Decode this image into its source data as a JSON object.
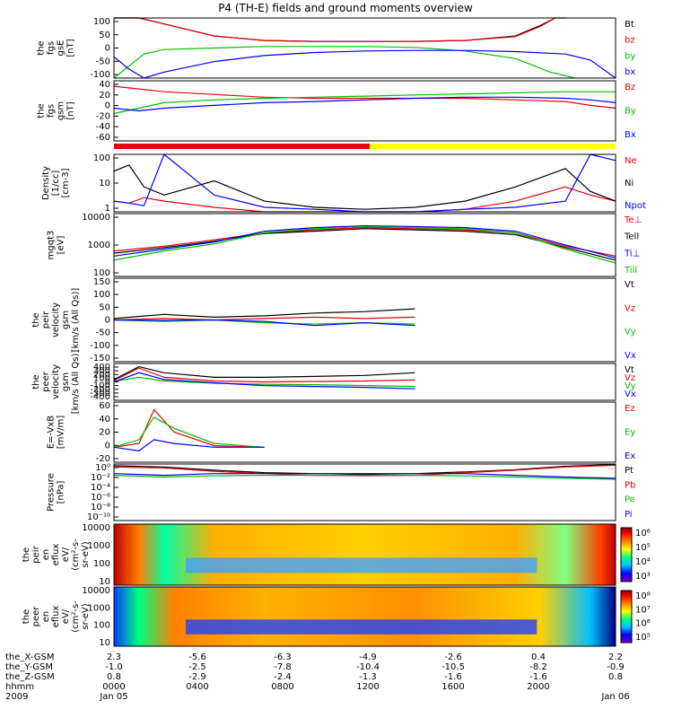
{
  "title": "P4 (TH-E) fields and ground moments overview",
  "colors": {
    "black": "#000000",
    "red": "#e8000b",
    "green": "#00c000",
    "blue": "#0000ff",
    "yellow": "#ffff00"
  },
  "chart_data": [
    {
      "type": "line",
      "panel": "fgs_gse",
      "ylabel": [
        "the",
        "fgs",
        "gsE",
        "[nT]"
      ],
      "yticks": [
        "100",
        "50",
        "0",
        "-50",
        "-100"
      ],
      "ylim": [
        -100,
        100
      ],
      "series": [
        {
          "name": "Bt",
          "color": "black",
          "x": [
            0,
            0.02,
            0.05,
            0.1,
            0.2,
            0.3,
            0.4,
            0.5,
            0.6,
            0.7,
            0.8,
            0.85,
            0.88,
            0.9
          ],
          "y": [
            100,
            100,
            100,
            80,
            40,
            25,
            22,
            22,
            22,
            25,
            40,
            75,
            100,
            100
          ]
        },
        {
          "name": "bz",
          "color": "red",
          "x": [
            0,
            0.05,
            0.1,
            0.2,
            0.3,
            0.4,
            0.5,
            0.6,
            0.7,
            0.8,
            0.85,
            0.88
          ],
          "y": [
            100,
            100,
            80,
            40,
            25,
            22,
            22,
            22,
            25,
            38,
            72,
            100
          ]
        },
        {
          "name": "by",
          "color": "green",
          "x": [
            0,
            0.03,
            0.06,
            0.1,
            0.2,
            0.3,
            0.4,
            0.5,
            0.6,
            0.7,
            0.8,
            0.87,
            0.92
          ],
          "y": [
            -100,
            -60,
            -20,
            -5,
            0,
            5,
            5,
            5,
            2,
            -10,
            -35,
            -80,
            -100
          ]
        },
        {
          "name": "bx",
          "color": "blue",
          "x": [
            0,
            0.03,
            0.06,
            0.1,
            0.2,
            0.3,
            0.4,
            0.5,
            0.6,
            0.7,
            0.8,
            0.9,
            0.95,
            1
          ],
          "y": [
            -30,
            -70,
            -100,
            -80,
            -45,
            -25,
            -15,
            -10,
            -8,
            -8,
            -12,
            -20,
            -40,
            -100
          ]
        }
      ]
    },
    {
      "type": "line",
      "panel": "fgs_gsm",
      "ylabel": [
        "the",
        "fgs",
        "gsm",
        "[nT]"
      ],
      "yticks": [
        "40",
        "20",
        "0",
        "-20",
        "-40",
        "-60"
      ],
      "ylim": [
        -70,
        40
      ],
      "series": [
        {
          "name": "Bz",
          "color": "red",
          "x": [
            0,
            0.05,
            0.1,
            0.2,
            0.3,
            0.4,
            0.5,
            0.6,
            0.7,
            0.8,
            0.9,
            0.95,
            1
          ],
          "y": [
            30,
            25,
            20,
            15,
            10,
            8,
            8,
            8,
            8,
            5,
            2,
            -5,
            -10
          ]
        },
        {
          "name": "By",
          "color": "green",
          "x": [
            0,
            0.05,
            0.1,
            0.2,
            0.3,
            0.4,
            0.5,
            0.6,
            0.7,
            0.8,
            0.9,
            0.95,
            1
          ],
          "y": [
            -20,
            -10,
            0,
            5,
            8,
            10,
            12,
            14,
            16,
            18,
            20,
            20,
            20
          ]
        },
        {
          "name": "Bx",
          "color": "blue",
          "x": [
            0,
            0.05,
            0.1,
            0.2,
            0.3,
            0.4,
            0.5,
            0.6,
            0.7,
            0.8,
            0.9,
            0.95,
            1
          ],
          "y": [
            -10,
            -15,
            -10,
            -5,
            0,
            2,
            5,
            8,
            10,
            10,
            8,
            5,
            0
          ]
        }
      ]
    },
    {
      "type": "line",
      "panel": "density",
      "ylabel": [
        "Density",
        "[1/cc]",
        "[cm-3]"
      ],
      "yticks": [
        "100",
        "10",
        "1"
      ],
      "ylim_log": [
        0.3,
        200
      ],
      "series": [
        {
          "name": "Ne",
          "color": "red",
          "x": [
            0,
            0.03,
            0.06,
            0.1,
            0.2,
            0.3,
            0.4,
            0.5,
            0.6,
            0.7,
            0.8,
            0.9,
            0.95,
            1
          ],
          "y": [
            1,
            0.8,
            1.5,
            1,
            0.5,
            0.3,
            0.3,
            0.3,
            0.3,
            0.4,
            1,
            5,
            2,
            1
          ]
        },
        {
          "name": "Ni",
          "color": "black",
          "x": [
            0,
            0.03,
            0.06,
            0.1,
            0.2,
            0.3,
            0.4,
            0.5,
            0.6,
            0.7,
            0.8,
            0.9,
            0.95,
            1
          ],
          "y": [
            30,
            60,
            5,
            2,
            10,
            1,
            0.5,
            0.4,
            0.5,
            1,
            5,
            40,
            3,
            1
          ]
        },
        {
          "name": "Npot",
          "color": "blue",
          "x": [
            0,
            0.03,
            0.06,
            0.1,
            0.2,
            0.3,
            0.4,
            0.5,
            0.6,
            0.7,
            0.8,
            0.9,
            0.95,
            1
          ],
          "y": [
            1,
            0.8,
            0.6,
            200,
            2,
            0.5,
            0.4,
            0.3,
            0.3,
            0.4,
            0.5,
            1,
            200,
            100
          ]
        }
      ]
    },
    {
      "type": "line",
      "panel": "temperature",
      "ylabel": [
        "mgqt3",
        "[eV]"
      ],
      "yticks": [
        "10000",
        "1000",
        "100"
      ],
      "ylim_log": [
        40,
        20000
      ],
      "series": [
        {
          "name": "Te⊥",
          "color": "red",
          "x": [
            0,
            0.1,
            0.2,
            0.3,
            0.4,
            0.5,
            0.6,
            0.7,
            0.8,
            0.9,
            1
          ],
          "y": [
            500,
            800,
            1500,
            3000,
            4000,
            5000,
            4500,
            4000,
            3000,
            800,
            300
          ]
        },
        {
          "name": "Tell",
          "color": "black",
          "x": [
            0,
            0.1,
            0.2,
            0.3,
            0.4,
            0.5,
            0.6,
            0.7,
            0.8,
            0.9,
            1
          ],
          "y": [
            400,
            700,
            1300,
            2800,
            3500,
            4500,
            4000,
            3500,
            2500,
            700,
            200
          ]
        },
        {
          "name": "Ti⊥",
          "color": "blue",
          "x": [
            0,
            0.1,
            0.2,
            0.3,
            0.4,
            0.5,
            0.6,
            0.7,
            0.8,
            0.9,
            1
          ],
          "y": [
            300,
            600,
            1200,
            3500,
            5000,
            6000,
            5500,
            5000,
            3500,
            900,
            250
          ]
        },
        {
          "name": "Till",
          "color": "green",
          "x": [
            0,
            0.1,
            0.2,
            0.3,
            0.4,
            0.5,
            0.6,
            0.7,
            0.8,
            0.9,
            1
          ],
          "y": [
            200,
            500,
            1000,
            3000,
            4500,
            5500,
            5000,
            4500,
            3000,
            600,
            150
          ]
        }
      ]
    },
    {
      "type": "line",
      "panel": "peir_velocity",
      "ylabel": [
        "the",
        "peir",
        "velocity",
        "gsm",
        "[km/s (All Qs)]"
      ],
      "yticks": [
        "150",
        "100",
        "50",
        "0",
        "-50",
        "-100",
        "-150"
      ],
      "ylim": [
        -150,
        150
      ],
      "series": [
        {
          "name": "Vt",
          "color": "black",
          "x": [
            0,
            0.1,
            0.2,
            0.3,
            0.4,
            0.5,
            0.6
          ],
          "y": [
            5,
            20,
            10,
            15,
            25,
            30,
            40
          ]
        },
        {
          "name": "Vz",
          "color": "red",
          "x": [
            0,
            0.1,
            0.2,
            0.3,
            0.4,
            0.5,
            0.6
          ],
          "y": [
            0,
            5,
            0,
            5,
            10,
            5,
            10
          ]
        },
        {
          "name": "Vy",
          "color": "green",
          "x": [
            0,
            0.1,
            0.2,
            0.3,
            0.4,
            0.5,
            0.6
          ],
          "y": [
            0,
            -5,
            0,
            -10,
            -15,
            -10,
            -15
          ]
        },
        {
          "name": "Vx",
          "color": "blue",
          "x": [
            0,
            0.1,
            0.2,
            0.3,
            0.4,
            0.5,
            0.6
          ],
          "y": [
            0,
            -2,
            0,
            -5,
            -20,
            -10,
            -20
          ]
        }
      ]
    },
    {
      "type": "line",
      "panel": "peer_velocity",
      "ylabel": [
        "the",
        "peer",
        "velocity",
        "gsm",
        "[km/s (All Qs)]"
      ],
      "yticks": [
        "400",
        "300",
        "200",
        "100",
        "0",
        "-100",
        "-200",
        "-300",
        "-400"
      ],
      "ylim": [
        -400,
        400
      ],
      "series": [
        {
          "name": "Vt",
          "color": "black",
          "x": [
            0,
            0.05,
            0.1,
            0.2,
            0.3,
            0.4,
            0.5,
            0.6
          ],
          "y": [
            50,
            330,
            200,
            100,
            100,
            120,
            140,
            200
          ]
        },
        {
          "name": "Vz",
          "color": "red",
          "x": [
            0,
            0.05,
            0.1,
            0.2,
            0.3,
            0.4,
            0.5,
            0.6
          ],
          "y": [
            30,
            300,
            100,
            20,
            0,
            10,
            20,
            40
          ]
        },
        {
          "name": "Vy",
          "color": "green",
          "x": [
            0,
            0.05,
            0.1,
            0.2,
            0.3,
            0.4,
            0.5,
            0.6
          ],
          "y": [
            10,
            100,
            20,
            -30,
            -50,
            -60,
            -80,
            -100
          ]
        },
        {
          "name": "Vx",
          "color": "blue",
          "x": [
            0,
            0.05,
            0.1,
            0.2,
            0.3,
            0.4,
            0.5,
            0.6
          ],
          "y": [
            0,
            200,
            50,
            -20,
            -80,
            -100,
            -120,
            -150
          ]
        }
      ]
    },
    {
      "type": "line",
      "panel": "efield",
      "ylabel": [
        "E=-VxB",
        "[mV/m]"
      ],
      "yticks": [
        "60",
        "40",
        "20",
        "0",
        "-20"
      ],
      "ylim": [
        -20,
        60
      ],
      "series": [
        {
          "name": "Ez",
          "color": "red",
          "x": [
            0,
            0.05,
            0.08,
            0.12,
            0.2,
            0.3
          ],
          "y": [
            0,
            5,
            50,
            20,
            2,
            0
          ]
        },
        {
          "name": "Ey",
          "color": "green",
          "x": [
            0,
            0.05,
            0.08,
            0.12,
            0.2,
            0.3
          ],
          "y": [
            0,
            10,
            40,
            25,
            5,
            0
          ]
        },
        {
          "name": "Ex",
          "color": "blue",
          "x": [
            0,
            0.05,
            0.08,
            0.12,
            0.2,
            0.3
          ],
          "y": [
            0,
            -5,
            10,
            5,
            0,
            0
          ]
        }
      ]
    },
    {
      "type": "line",
      "panel": "pressure",
      "ylabel": [
        "Pressure",
        "[nPa]"
      ],
      "yticks": [
        "10⁰",
        "10⁻²",
        "10⁻⁴",
        "10⁻⁶",
        "10⁻⁸",
        "10⁻¹⁰"
      ],
      "ylim_log": [
        1e-10,
        1
      ],
      "series": [
        {
          "name": "Pt",
          "color": "black",
          "x": [
            0,
            0.1,
            0.2,
            0.3,
            0.4,
            0.5,
            0.6,
            0.7,
            0.8,
            0.9,
            1
          ],
          "y": [
            0.5,
            0.3,
            0.08,
            0.03,
            0.02,
            0.015,
            0.02,
            0.04,
            0.1,
            0.4,
            0.8
          ]
        },
        {
          "name": "Pb",
          "color": "red",
          "x": [
            0,
            0.1,
            0.2,
            0.3,
            0.4,
            0.5,
            0.6,
            0.7,
            0.8,
            0.9,
            1
          ],
          "y": [
            0.3,
            0.2,
            0.05,
            0.02,
            0.01,
            0.008,
            0.01,
            0.03,
            0.08,
            0.3,
            0.6
          ]
        },
        {
          "name": "Pe",
          "color": "green",
          "x": [
            0,
            0.1,
            0.2,
            0.3,
            0.4,
            0.5,
            0.6,
            0.7,
            0.8,
            0.9,
            1
          ],
          "y": [
            0.01,
            0.005,
            0.008,
            0.01,
            0.01,
            0.01,
            0.01,
            0.008,
            0.005,
            0.003,
            0.002
          ]
        },
        {
          "name": "Pi",
          "color": "blue",
          "x": [
            0,
            0.1,
            0.2,
            0.3,
            0.4,
            0.5,
            0.6,
            0.7,
            0.8,
            0.9,
            1
          ],
          "y": [
            0.02,
            0.01,
            0.02,
            0.02,
            0.02,
            0.02,
            0.02,
            0.02,
            0.01,
            0.005,
            0.003
          ]
        }
      ]
    },
    {
      "type": "heatmap",
      "panel": "peir_spectrogram",
      "ylabel": [
        "the",
        "peir",
        "en",
        "eflux",
        "eV/",
        "(cm²-s-",
        "sr-eV)"
      ],
      "yticks": [
        "10000",
        "1000",
        "100",
        "10"
      ],
      "colorbar_ticks": [
        "10⁶",
        "10⁵",
        "10⁴",
        "10³"
      ]
    },
    {
      "type": "heatmap",
      "panel": "peer_spectrogram",
      "ylabel": [
        "the",
        "peer",
        "en",
        "eflux",
        "eV/",
        "(cm²-s-",
        "sr-eV)"
      ],
      "yticks": [
        "10000",
        "1000",
        "100",
        "10"
      ],
      "colorbar_ticks": [
        "10⁸",
        "10⁷",
        "10⁶",
        "10⁵"
      ]
    }
  ],
  "footer": {
    "rows": [
      {
        "label": "the_X-GSM",
        "values": [
          "2.3",
          "-5.6",
          "-6.3",
          "-4.9",
          "-2.6",
          "0.4",
          "2.2"
        ]
      },
      {
        "label": "the_Y-GSM",
        "values": [
          "-1.0",
          "-2.5",
          "-7.8",
          "-10.4",
          "-10.5",
          "-8.2",
          "-0.9"
        ]
      },
      {
        "label": "the_Z-GSM",
        "values": [
          "0.8",
          "-2.9",
          "-2.4",
          "-1.3",
          "-1.6",
          "-1.6",
          "0.8"
        ]
      },
      {
        "label": "hhmm",
        "values": [
          "0000",
          "0400",
          "0800",
          "1200",
          "1600",
          "2000",
          ""
        ]
      },
      {
        "label": "2009",
        "values": [
          "Jan 05",
          "",
          "",
          "",
          "",
          "",
          "Jan 06"
        ]
      }
    ]
  }
}
